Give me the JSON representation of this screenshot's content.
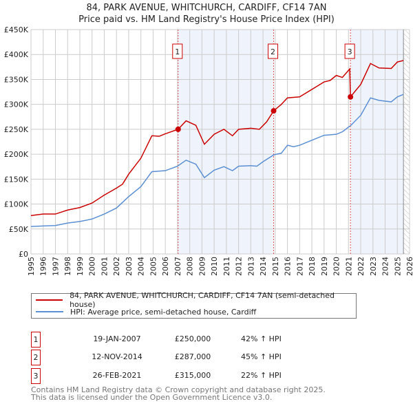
{
  "chart_data": {
    "type": "line",
    "title": "84, PARK AVENUE, WHITCHURCH, CARDIFF, CF14 7AN",
    "subtitle": "Price paid vs. HM Land Registry's House Price Index (HPI)",
    "xlim": [
      1995,
      2026
    ],
    "ylim": [
      0,
      450000
    ],
    "yticks": [
      0,
      50000,
      100000,
      150000,
      200000,
      250000,
      300000,
      350000,
      400000,
      450000
    ],
    "ytick_labels": [
      "£0",
      "£50K",
      "£100K",
      "£150K",
      "£200K",
      "£250K",
      "£300K",
      "£350K",
      "£400K",
      "£450K"
    ],
    "xticks": [
      1995,
      1996,
      1997,
      1998,
      1999,
      2000,
      2001,
      2002,
      2003,
      2004,
      2005,
      2006,
      2007,
      2008,
      2009,
      2010,
      2011,
      2012,
      2013,
      2014,
      2015,
      2016,
      2017,
      2018,
      2019,
      2020,
      2021,
      2022,
      2023,
      2024,
      2025,
      2026
    ],
    "grid": true,
    "series": [
      {
        "name": "84, PARK AVENUE, WHITCHURCH, CARDIFF, CF14 7AN (semi-detached house)",
        "color": "#cc0000",
        "x": [
          1995,
          1996,
          1997,
          1998,
          1999,
          2000,
          2001,
          2002,
          2002.5,
          2003,
          2004,
          2004.9,
          2005.5,
          2006,
          2007.05,
          2007.7,
          2008.5,
          2009.2,
          2010,
          2010.8,
          2011.5,
          2012,
          2013,
          2013.7,
          2014.3,
          2014.87,
          2015.5,
          2016,
          2017,
          2018,
          2019,
          2019.5,
          2020,
          2020.5,
          2021.1,
          2021.16,
          2022,
          2022.8,
          2023.5,
          2024.5,
          2025,
          2025.5
        ],
        "y": [
          77000,
          80000,
          80000,
          88000,
          93000,
          102000,
          118000,
          132000,
          140000,
          160000,
          192000,
          237000,
          236000,
          241000,
          250000,
          267000,
          258000,
          220000,
          240000,
          250000,
          237000,
          250000,
          252000,
          250000,
          265000,
          287000,
          300000,
          313000,
          315000,
          330000,
          345000,
          348000,
          358000,
          354000,
          371000,
          315000,
          340000,
          382000,
          373000,
          372000,
          385000,
          388000
        ]
      },
      {
        "name": "HPI: Average price, semi-detached house, Cardiff",
        "color": "#5b8fd4",
        "x": [
          1995,
          1996,
          1997,
          1998,
          1999,
          2000,
          2001,
          2002,
          2003,
          2004,
          2004.9,
          2006,
          2007,
          2007.7,
          2008.5,
          2009.2,
          2010,
          2010.8,
          2011.5,
          2012,
          2013,
          2013.5,
          2014,
          2014.9,
          2015.5,
          2016,
          2016.5,
          2017,
          2018,
          2019,
          2020,
          2020.5,
          2021.2,
          2022,
          2022.8,
          2023.5,
          2024.5,
          2025,
          2025.5
        ],
        "y": [
          55000,
          56000,
          57000,
          62000,
          65000,
          70000,
          80000,
          92000,
          115000,
          135000,
          165000,
          167000,
          176000,
          188000,
          180000,
          153000,
          168000,
          175000,
          167000,
          176000,
          177000,
          176000,
          185000,
          199000,
          202000,
          218000,
          215000,
          218000,
          228000,
          238000,
          240000,
          245000,
          258000,
          278000,
          313000,
          308000,
          305000,
          315000,
          320000
        ]
      }
    ],
    "sales": [
      {
        "label": "1",
        "x": 2007.05,
        "y": 250000,
        "date": "19-JAN-2007",
        "price": "£250,000",
        "hpi": "42% ↑ HPI"
      },
      {
        "label": "2",
        "x": 2014.87,
        "y": 287000,
        "date": "12-NOV-2014",
        "price": "£287,000",
        "hpi": "45% ↑ HPI"
      },
      {
        "label": "3",
        "x": 2021.16,
        "y": 315000,
        "date": "26-FEB-2021",
        "price": "£315,000",
        "hpi": "22% ↑ HPI"
      }
    ],
    "shaded_ranges": [
      [
        2007.05,
        2014.87
      ],
      [
        2021.16,
        2025.5
      ]
    ],
    "hatched_from": 2025.5,
    "legend_placement": "bottom"
  },
  "footer": {
    "line1": "Contains HM Land Registry data © Crown copyright and database right 2025.",
    "line2": "This data is licensed under the Open Government Licence v3.0."
  }
}
